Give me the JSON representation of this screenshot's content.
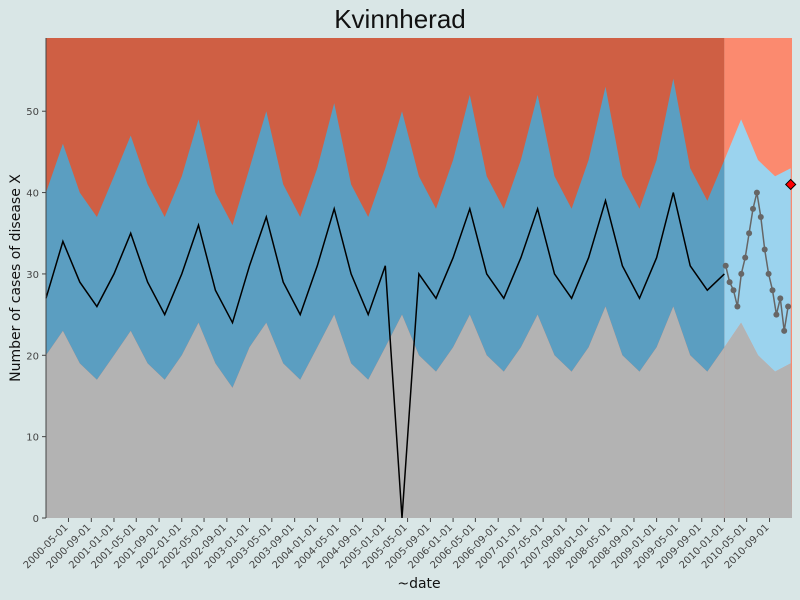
{
  "chart_data": {
    "type": "line",
    "title": "Kvinnherad",
    "xlabel": "~date",
    "ylabel": "Number of cases of disease X",
    "ylim": [
      0,
      59
    ],
    "yticks": [
      0,
      10,
      20,
      30,
      40,
      50
    ],
    "xlim": [
      "2000-01-01",
      "2010-12-31"
    ],
    "forecast_start": "2010-01-01",
    "x_tick_labels": [
      "2000-05-01",
      "2000-09-01",
      "2001-01-01",
      "2001-05-01",
      "2001-09-01",
      "2002-01-01",
      "2002-05-01",
      "2002-09-01",
      "2003-01-01",
      "2003-05-01",
      "2003-09-01",
      "2004-01-01",
      "2004-05-01",
      "2004-09-01",
      "2005-01-01",
      "2005-05-01",
      "2005-09-01",
      "2006-01-01",
      "2006-05-01",
      "2006-09-01",
      "2007-01-01",
      "2007-05-01",
      "2007-09-01",
      "2008-01-01",
      "2008-05-01",
      "2008-09-01",
      "2009-01-01",
      "2009-05-01",
      "2009-09-01",
      "2010-01-01",
      "2010-05-01",
      "2010-09-01"
    ],
    "series": [
      {
        "values": [
          {
            "x": "2000-01-01",
            "lower": 20,
            "upper": 40,
            "observed": 27
          },
          {
            "x": "2000-04-01",
            "lower": 23,
            "upper": 46,
            "observed": 34
          },
          {
            "x": "2000-07-01",
            "lower": 19,
            "upper": 40,
            "observed": 29
          },
          {
            "x": "2000-10-01",
            "lower": 17,
            "upper": 37,
            "observed": 26
          },
          {
            "x": "2001-01-01",
            "lower": 20,
            "upper": 42,
            "observed": 30
          },
          {
            "x": "2001-04-01",
            "lower": 23,
            "upper": 47,
            "observed": 35
          },
          {
            "x": "2001-07-01",
            "lower": 19,
            "upper": 41,
            "observed": 29
          },
          {
            "x": "2001-10-01",
            "lower": 17,
            "upper": 37,
            "observed": 25
          },
          {
            "x": "2002-01-01",
            "lower": 20,
            "upper": 42,
            "observed": 30
          },
          {
            "x": "2002-04-01",
            "lower": 24,
            "upper": 49,
            "observed": 36
          },
          {
            "x": "2002-07-01",
            "lower": 19,
            "upper": 40,
            "observed": 28
          },
          {
            "x": "2002-10-01",
            "lower": 16,
            "upper": 36,
            "observed": 24
          },
          {
            "x": "2003-01-01",
            "lower": 21,
            "upper": 43,
            "observed": 31
          },
          {
            "x": "2003-04-01",
            "lower": 24,
            "upper": 50,
            "observed": 37
          },
          {
            "x": "2003-07-01",
            "lower": 19,
            "upper": 41,
            "observed": 29
          },
          {
            "x": "2003-10-01",
            "lower": 17,
            "upper": 37,
            "observed": 25
          },
          {
            "x": "2004-01-01",
            "lower": 21,
            "upper": 43,
            "observed": 31
          },
          {
            "x": "2004-04-01",
            "lower": 25,
            "upper": 51,
            "observed": 38
          },
          {
            "x": "2004-07-01",
            "lower": 19,
            "upper": 41,
            "observed": 30
          },
          {
            "x": "2004-10-01",
            "lower": 17,
            "upper": 37,
            "observed": 25
          },
          {
            "x": "2005-01-01",
            "lower": 21,
            "upper": 43,
            "observed": 31
          },
          {
            "x": "2005-04-01",
            "lower": 25,
            "upper": 50,
            "observed": 0
          },
          {
            "x": "2005-07-01",
            "lower": 20,
            "upper": 42,
            "observed": 30
          },
          {
            "x": "2005-10-01",
            "lower": 18,
            "upper": 38,
            "observed": 27
          },
          {
            "x": "2006-01-01",
            "lower": 21,
            "upper": 44,
            "observed": 32
          },
          {
            "x": "2006-04-01",
            "lower": 25,
            "upper": 52,
            "observed": 38
          },
          {
            "x": "2006-07-01",
            "lower": 20,
            "upper": 42,
            "observed": 30
          },
          {
            "x": "2006-10-01",
            "lower": 18,
            "upper": 38,
            "observed": 27
          },
          {
            "x": "2007-01-01",
            "lower": 21,
            "upper": 44,
            "observed": 32
          },
          {
            "x": "2007-04-01",
            "lower": 25,
            "upper": 52,
            "observed": 38
          },
          {
            "x": "2007-07-01",
            "lower": 20,
            "upper": 42,
            "observed": 30
          },
          {
            "x": "2007-10-01",
            "lower": 18,
            "upper": 38,
            "observed": 27
          },
          {
            "x": "2008-01-01",
            "lower": 21,
            "upper": 44,
            "observed": 32
          },
          {
            "x": "2008-04-01",
            "lower": 26,
            "upper": 53,
            "observed": 39
          },
          {
            "x": "2008-07-01",
            "lower": 20,
            "upper": 42,
            "observed": 31
          },
          {
            "x": "2008-10-01",
            "lower": 18,
            "upper": 38,
            "observed": 27
          },
          {
            "x": "2009-01-01",
            "lower": 21,
            "upper": 44,
            "observed": 32
          },
          {
            "x": "2009-04-01",
            "lower": 26,
            "upper": 54,
            "observed": 40
          },
          {
            "x": "2009-07-01",
            "lower": 20,
            "upper": 43,
            "observed": 31
          },
          {
            "x": "2009-10-01",
            "lower": 18,
            "upper": 39,
            "observed": 28
          },
          {
            "x": "2010-01-01",
            "lower": 21,
            "upper": 44,
            "observed": 30
          },
          {
            "x": "2010-04-01",
            "lower": 24,
            "upper": 49,
            "observed": 37
          },
          {
            "x": "2010-07-01",
            "lower": 20,
            "upper": 44,
            "observed": 31
          },
          {
            "x": "2010-10-01",
            "lower": 18,
            "upper": 42,
            "observed": 28
          },
          {
            "x": "2010-12-24",
            "lower": 19,
            "upper": 43,
            "observed": 41
          }
        ]
      }
    ],
    "forecast_points": [
      {
        "x": "2010-01-08",
        "y": 31
      },
      {
        "x": "2010-01-29",
        "y": 29
      },
      {
        "x": "2010-02-19",
        "y": 28
      },
      {
        "x": "2010-03-12",
        "y": 26
      },
      {
        "x": "2010-04-02",
        "y": 30
      },
      {
        "x": "2010-04-23",
        "y": 32
      },
      {
        "x": "2010-05-14",
        "y": 35
      },
      {
        "x": "2010-06-04",
        "y": 38
      },
      {
        "x": "2010-06-25",
        "y": 40
      },
      {
        "x": "2010-07-16",
        "y": 37
      },
      {
        "x": "2010-08-06",
        "y": 33
      },
      {
        "x": "2010-08-27",
        "y": 30
      },
      {
        "x": "2010-09-17",
        "y": 28
      },
      {
        "x": "2010-10-08",
        "y": 25
      },
      {
        "x": "2010-10-29",
        "y": 27
      },
      {
        "x": "2010-11-19",
        "y": 23
      },
      {
        "x": "2010-12-10",
        "y": 26
      }
    ],
    "alert_point": {
      "x": "2010-12-24",
      "y": 41
    },
    "colors": {
      "panel_background": "#b3b3b3",
      "band_normal": "#5b9ec1",
      "band_high": "#cf5f44",
      "forecast_band": "#9bd3ee",
      "forecast_high": "#fb8a6f",
      "forecast_low": "#b3b3b3",
      "observed_line": "#000000",
      "forecast_points": "#666666",
      "alert": "#ff0000"
    },
    "grid": false,
    "legend": "none"
  }
}
